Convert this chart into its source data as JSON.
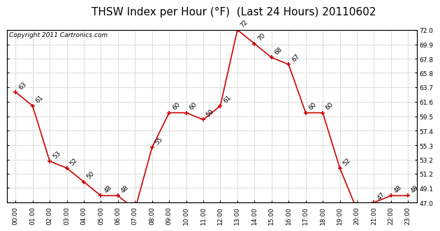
{
  "title": "THSW Index per Hour (°F)  (Last 24 Hours) 20110602",
  "copyright": "Copyright 2011 Cartronics.com",
  "hours": [
    "00:00",
    "01:00",
    "02:00",
    "03:00",
    "04:00",
    "05:00",
    "06:00",
    "07:00",
    "08:00",
    "09:00",
    "10:00",
    "11:00",
    "12:00",
    "13:00",
    "14:00",
    "15:00",
    "16:00",
    "17:00",
    "18:00",
    "19:00",
    "20:00",
    "21:00",
    "22:00",
    "23:00"
  ],
  "values": [
    63,
    61,
    53,
    52,
    50,
    48,
    48,
    46,
    55,
    60,
    60,
    59,
    61,
    72,
    70,
    68,
    67,
    60,
    60,
    52,
    46,
    47,
    48,
    48
  ],
  "line_color": "#cc0000",
  "marker_color": "#cc0000",
  "bg_color": "#ffffff",
  "plot_bg_color": "#ffffff",
  "grid_color": "#bbbbbb",
  "ylim_min": 47.0,
  "ylim_max": 72.0,
  "yticks": [
    47.0,
    49.1,
    51.2,
    53.2,
    55.3,
    57.4,
    59.5,
    61.6,
    63.7,
    65.8,
    67.8,
    69.9,
    72.0
  ],
  "title_fontsize": 11,
  "label_fontsize": 6.5,
  "tick_fontsize": 6.5,
  "copyright_fontsize": 6.5
}
